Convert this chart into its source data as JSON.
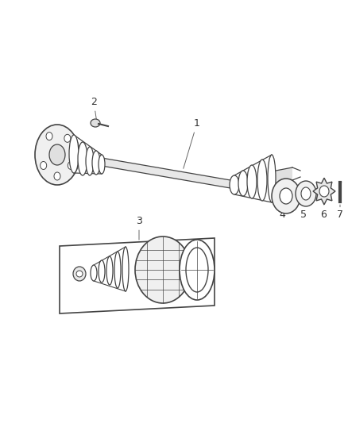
{
  "bg_color": "#ffffff",
  "line_color": "#444444",
  "label_color": "#333333",
  "figsize": [
    4.39,
    5.33
  ],
  "dpi": 100,
  "label_fontsize": 9,
  "shaft_color": "#dddddd",
  "parts_color": "#eeeeee"
}
